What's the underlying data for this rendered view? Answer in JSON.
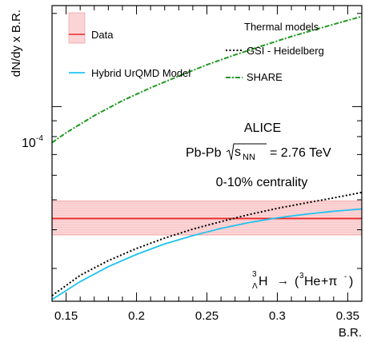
{
  "chart_data": {
    "type": "line",
    "x_axis": {
      "label": "B.R.",
      "range": [
        0.14,
        0.36
      ],
      "ticks": [
        0.15,
        0.2,
        0.25,
        0.3,
        0.35
      ],
      "tick_labels": [
        "0.15",
        "0.2",
        "0.25",
        "0.3",
        "0.35"
      ],
      "minor_step": 0.01
    },
    "y_axis": {
      "label": "dN/dy x B.R.",
      "scale": "log",
      "range": [
        2.35e-05,
        0.000212
      ],
      "labeled_tick": {
        "value": 0.0001,
        "label": "10-4",
        "base": "10",
        "exponent": "-4"
      },
      "minor_ticks": [
        3e-05,
        4e-05,
        5e-05,
        6e-05,
        7e-05,
        8e-05,
        9e-05,
        0.0002
      ]
    },
    "grid": false,
    "legend": {
      "entries": [
        {
          "key": "data",
          "label": "Data",
          "color": "#e8282a",
          "band_color": "#f7b3b5"
        },
        {
          "key": "hybrid",
          "label": "Hybrid UrQMD Model",
          "color": "#1ec2f0"
        }
      ],
      "thermal_title": "Thermal models",
      "thermal_entries": [
        {
          "key": "gsi",
          "label": "GSI - Heidelberg",
          "color": "#000000",
          "dash": "dotted"
        },
        {
          "key": "share",
          "label": "SHARE",
          "color": "#1e9a1e",
          "dash": "dashdot"
        }
      ]
    },
    "annotations": {
      "experiment": "ALICE",
      "system_prefix": "Pb-Pb",
      "sqrt_s_NN": "s",
      "sqrt_s_NN_sub": "NN",
      "energy": "= 2.76 TeV",
      "centrality": "0-10% centrality",
      "decay_H": "H",
      "decay_mass_number": "3",
      "decay_lambda": "Λ",
      "decay_arrow": "→",
      "decay_products_prefix": "(",
      "decay_He": "He",
      "decay_He_mass": "3",
      "decay_plus_pi": "+π",
      "decay_pi_charge": "-",
      "decay_products_suffix": ")"
    },
    "series": [
      {
        "key": "data",
        "type": "band",
        "x": [
          0.14,
          0.36
        ],
        "y": [
          4.35e-05,
          4.35e-05
        ],
        "y_low": [
          3.85e-05,
          3.85e-05
        ],
        "y_high": [
          4.95e-05,
          4.95e-05
        ]
      },
      {
        "key": "share",
        "x": [
          0.14,
          0.15,
          0.17,
          0.19,
          0.21,
          0.23,
          0.25,
          0.27,
          0.29,
          0.31,
          0.33,
          0.35,
          0.36
        ],
        "y": [
          7.65e-05,
          8.23e-05,
          9.35e-05,
          0.0001045,
          0.000115,
          0.0001255,
          0.0001365,
          0.000147,
          0.0001575,
          0.0001685,
          0.000179,
          0.00019,
          0.0001955
        ]
      },
      {
        "key": "gsi",
        "x": [
          0.14,
          0.16,
          0.18,
          0.2,
          0.22,
          0.24,
          0.26,
          0.28,
          0.3,
          0.32,
          0.34,
          0.36
        ],
        "y": [
          2.45e-05,
          2.85e-05,
          3.18e-05,
          3.48e-05,
          3.76e-05,
          4.02e-05,
          4.25e-05,
          4.48e-05,
          4.69e-05,
          4.88e-05,
          5.07e-05,
          5.28e-05
        ]
      },
      {
        "key": "hybrid",
        "x": [
          0.14,
          0.16,
          0.18,
          0.2,
          0.22,
          0.24,
          0.26,
          0.28,
          0.3,
          0.32,
          0.34,
          0.36
        ],
        "y": [
          2.38e-05,
          2.72e-05,
          3.04e-05,
          3.33e-05,
          3.6e-05,
          3.83e-05,
          4.04e-05,
          4.22e-05,
          4.37e-05,
          4.49e-05,
          4.59e-05,
          4.67e-05
        ]
      }
    ]
  }
}
